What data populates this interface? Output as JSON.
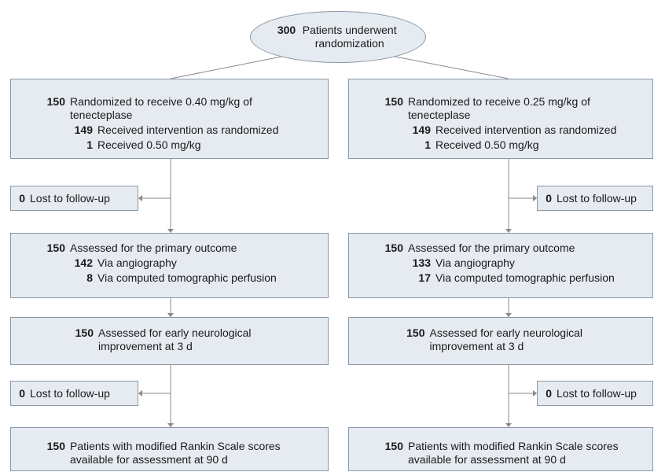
{
  "top": {
    "count": 300,
    "label": "Patients underwent randomization"
  },
  "arms": [
    {
      "randomized": {
        "count": 150,
        "label": "Randomized to receive 0.40 mg/kg of tenecteplase",
        "items": [
          {
            "count": 149,
            "label": "Received intervention as randomized"
          },
          {
            "count": 1,
            "label": "Received 0.50 mg/kg"
          }
        ]
      },
      "lost1": {
        "count": 0,
        "label": "Lost to follow-up"
      },
      "primary": {
        "count": 150,
        "label": "Assessed for the primary outcome",
        "items": [
          {
            "count": 142,
            "label": "Via angiography"
          },
          {
            "count": 8,
            "label": "Via computed tomographic perfusion"
          }
        ]
      },
      "early": {
        "count": 150,
        "label": "Assessed for early neurological improvement at 3 d"
      },
      "lost2": {
        "count": 0,
        "label": "Lost to follow-up"
      },
      "final": {
        "count": 150,
        "label": "Patients with modified Rankin Scale scores available for assessment at 90 d"
      }
    },
    {
      "randomized": {
        "count": 150,
        "label": "Randomized to receive 0.25 mg/kg of tenecteplase",
        "items": [
          {
            "count": 149,
            "label": "Received intervention as randomized"
          },
          {
            "count": 1,
            "label": "Received 0.50 mg/kg"
          }
        ]
      },
      "lost1": {
        "count": 0,
        "label": "Lost to follow-up"
      },
      "primary": {
        "count": 150,
        "label": "Assessed for the primary outcome",
        "items": [
          {
            "count": 133,
            "label": "Via angiography"
          },
          {
            "count": 17,
            "label": "Via computed tomographic perfusion"
          }
        ]
      },
      "early": {
        "count": 150,
        "label": "Assessed for early neurological improvement at 3 d"
      },
      "lost2": {
        "count": 0,
        "label": "Lost to follow-up"
      },
      "final": {
        "count": 150,
        "label": "Patients with modified Rankin Scale scores available for assessment at 90 d"
      }
    }
  ]
}
